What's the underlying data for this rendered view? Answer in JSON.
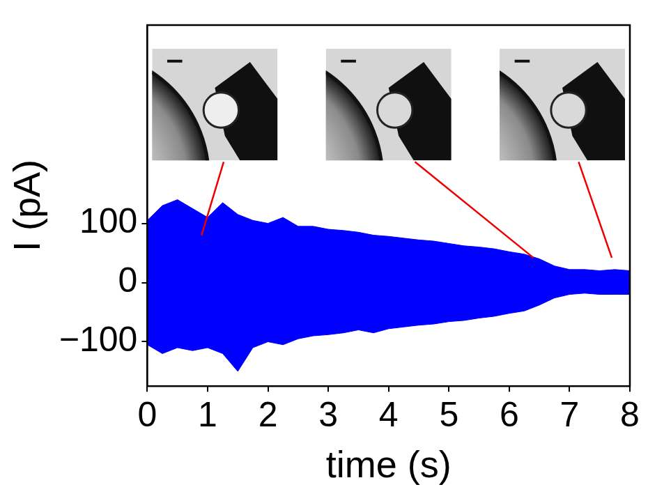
{
  "chart_data": {
    "type": "line",
    "x": [
      0,
      0.25,
      0.5,
      0.75,
      1,
      1.25,
      1.5,
      1.75,
      2,
      2.25,
      2.5,
      2.75,
      3,
      3.25,
      3.5,
      3.75,
      4,
      4.25,
      4.5,
      4.75,
      5,
      5.25,
      5.5,
      5.75,
      6,
      6.25,
      6.5,
      6.75,
      7,
      7.25,
      7.5,
      7.75,
      8
    ],
    "series": [
      {
        "color": "#0000ff",
        "values": [
          105,
          130,
          140,
          125,
          110,
          135,
          115,
          105,
          100,
          110,
          95,
          95,
          90,
          88,
          85,
          80,
          78,
          75,
          72,
          70,
          66,
          62,
          60,
          57,
          52,
          48,
          40,
          28,
          22,
          22,
          20,
          22,
          20
        ]
      },
      {
        "color": "#0000ff",
        "values": [
          -105,
          -120,
          -110,
          -115,
          -110,
          -120,
          -150,
          -110,
          -100,
          -105,
          -95,
          -90,
          -88,
          -85,
          -80,
          -85,
          -78,
          -75,
          -72,
          -70,
          -66,
          -64,
          -60,
          -57,
          -52,
          -48,
          -38,
          -26,
          -20,
          -18,
          -20,
          -20,
          -20
        ]
      }
    ],
    "xlabel": "time (s)",
    "ylabel": "I (pA)",
    "xlim": [
      0,
      8
    ],
    "ylim": [
      -175,
      435
    ],
    "xticks": [
      0,
      1,
      2,
      3,
      4,
      5,
      6,
      7,
      8
    ],
    "yticks": [
      {
        "value": -100,
        "label": "−100"
      },
      0,
      100
    ],
    "grid": false,
    "insets": [
      {
        "x": 0.9,
        "y": 80
      },
      {
        "x": 6.4,
        "y": 42
      },
      {
        "x": 7.7,
        "y": 42
      }
    ]
  }
}
